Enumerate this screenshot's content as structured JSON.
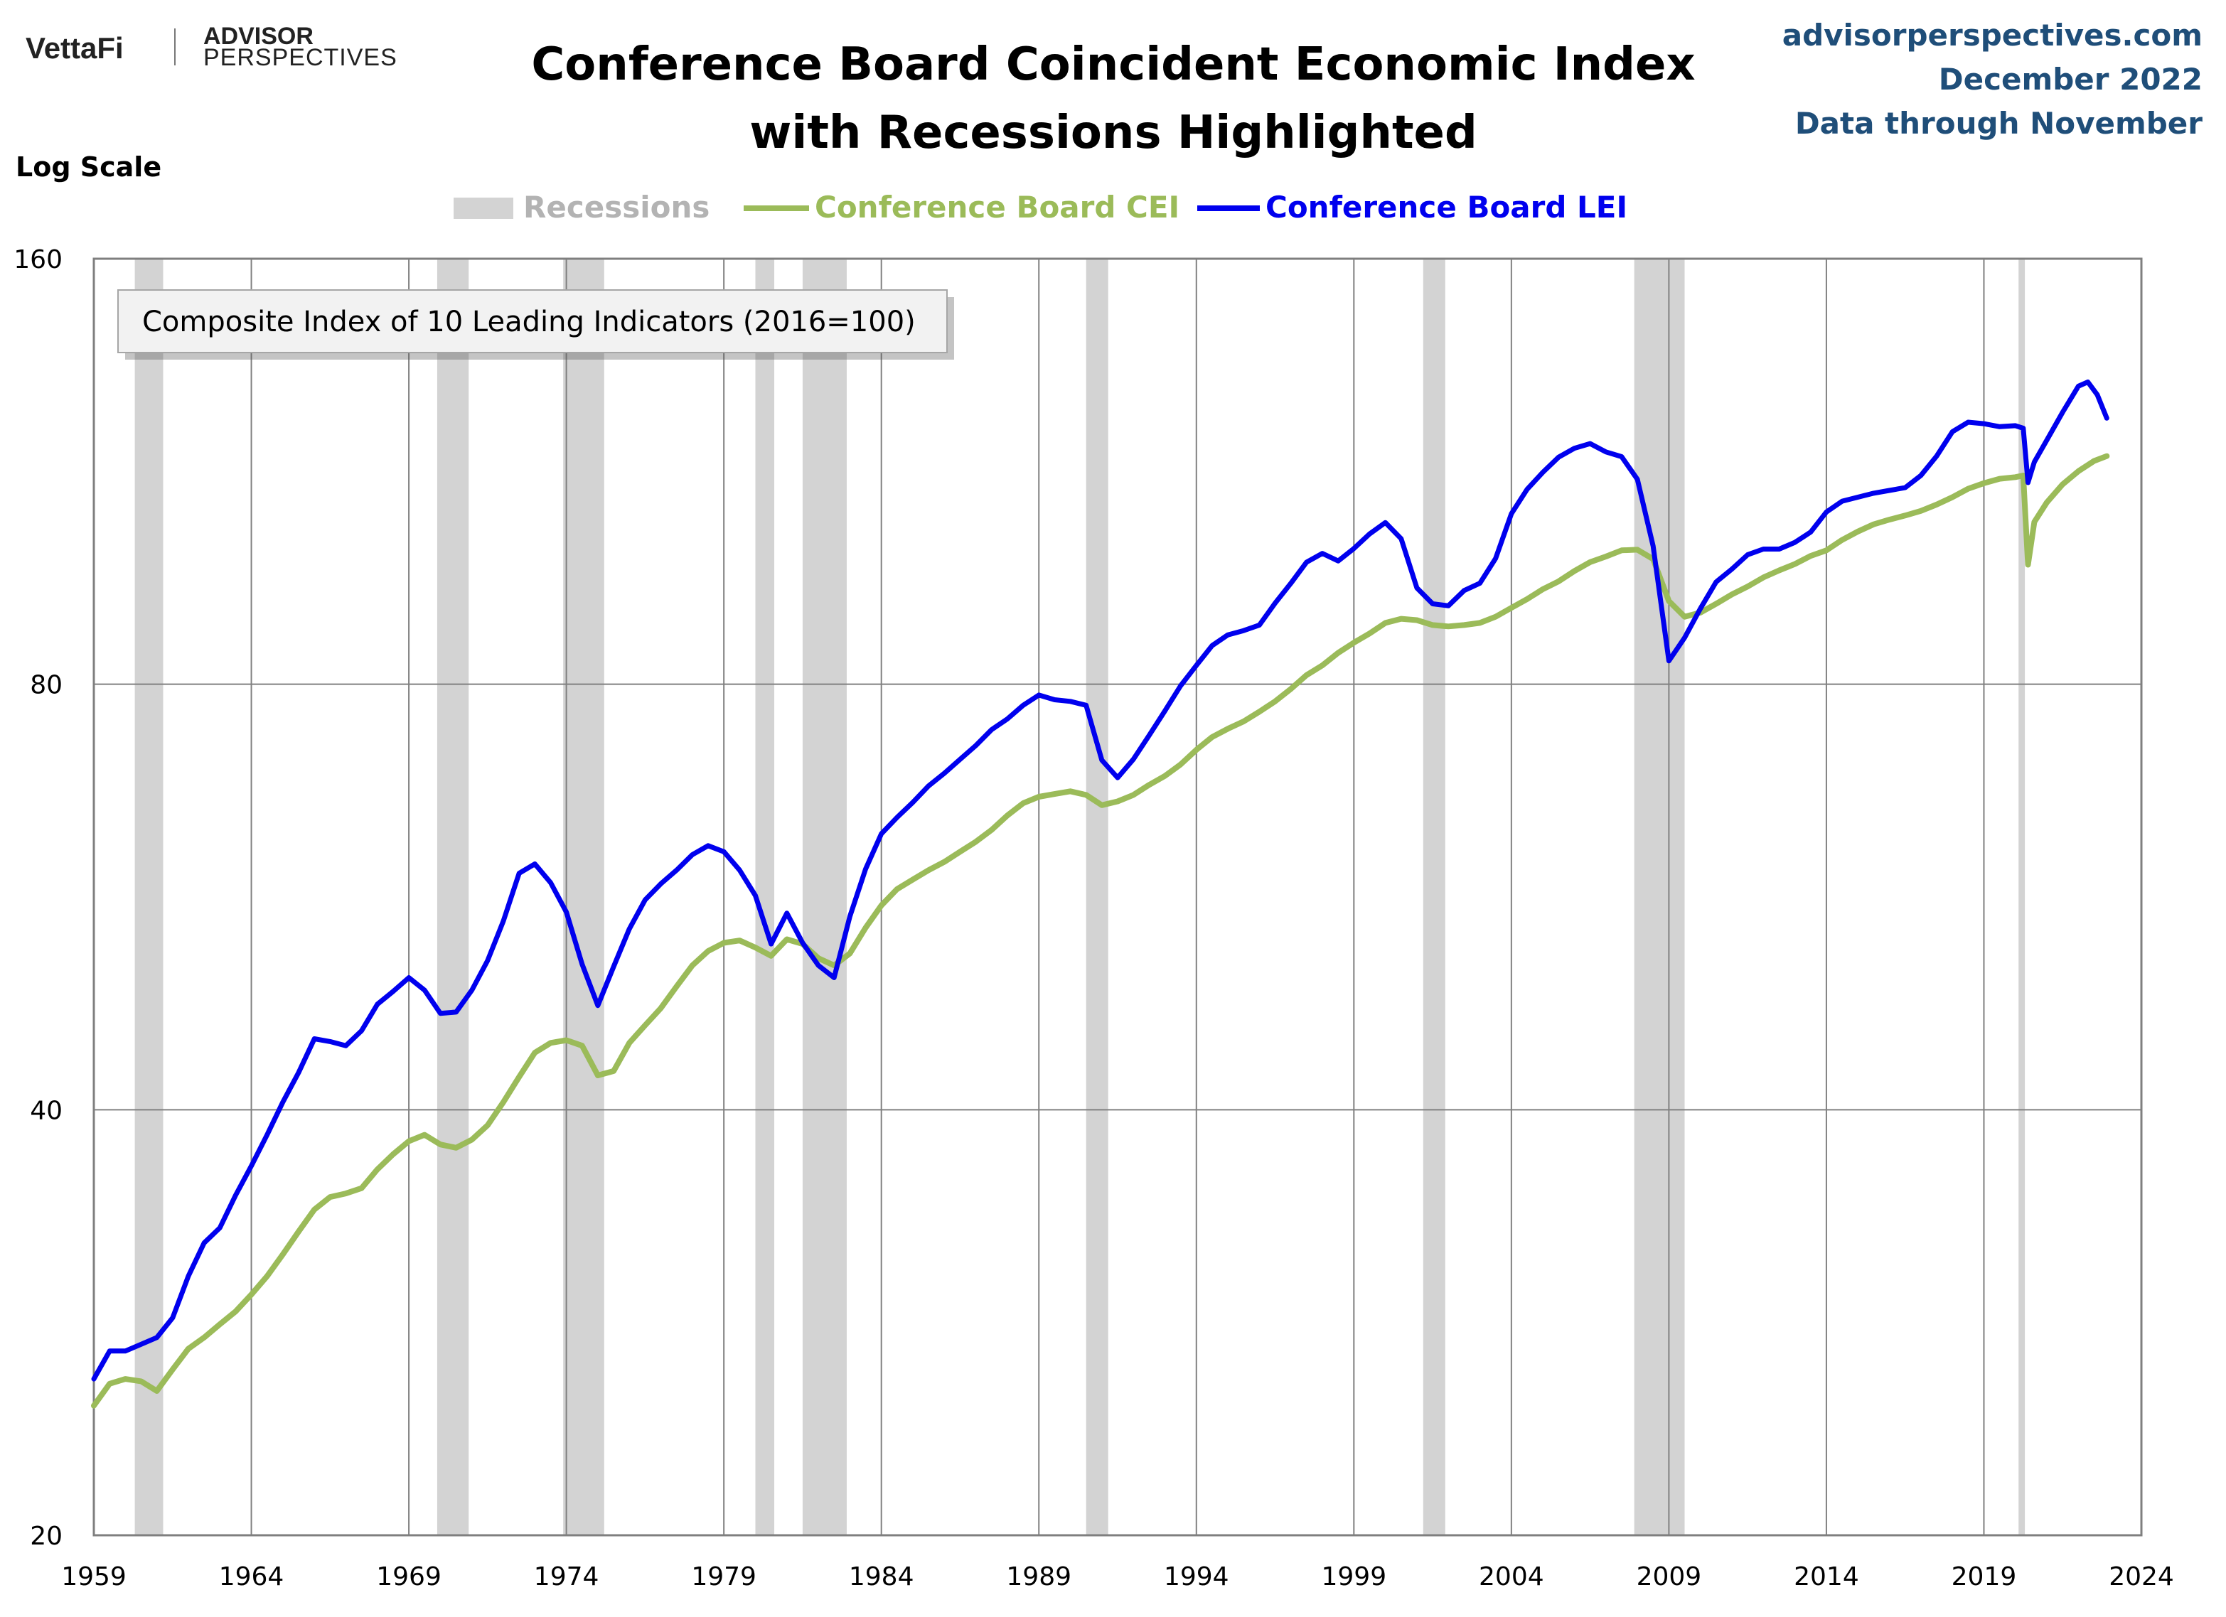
{
  "branding": {
    "logo_left": "VettaFi",
    "logo_right_line1": "ADVISOR",
    "logo_right_line2": "PERSPECTIVES",
    "site": "advisorperspectives.com",
    "date": "December 2022",
    "data_through": "Data through November"
  },
  "chart_data": {
    "type": "line",
    "title": "Conference Board Coincident Economic Index",
    "subtitle": "with Recessions Highlighted",
    "scale_label": "Log Scale",
    "y_scale": "log",
    "ylim": [
      20,
      160
    ],
    "y_ticks": [
      20,
      40,
      80,
      160
    ],
    "xlim": [
      1959,
      2024
    ],
    "x_ticks": [
      1959,
      1964,
      1969,
      1974,
      1979,
      1984,
      1989,
      1994,
      1999,
      2004,
      2009,
      2014,
      2019,
      2024
    ],
    "grid": true,
    "legend_position": "top-center",
    "annotation": "Composite Index of 10 Leading Indicators (2016=100)",
    "recessions": {
      "name": "Recessions",
      "color": "#d3d3d3",
      "periods": [
        [
          1960.3,
          1961.2
        ],
        [
          1969.9,
          1970.9
        ],
        [
          1973.9,
          1975.2
        ],
        [
          1980.0,
          1980.6
        ],
        [
          1981.5,
          1982.9
        ],
        [
          1990.5,
          1991.2
        ],
        [
          2001.2,
          2001.9
        ],
        [
          2007.9,
          2009.5
        ],
        [
          2020.1,
          2020.3
        ]
      ]
    },
    "series": [
      {
        "name": "Conference Board CEI",
        "color": "#9bbb59",
        "x": [
          1959.0,
          1959.5,
          1960.0,
          1960.5,
          1961.0,
          1961.5,
          1962.0,
          1962.5,
          1963.0,
          1963.5,
          1964.0,
          1964.5,
          1965.0,
          1965.5,
          1966.0,
          1966.5,
          1967.0,
          1967.5,
          1968.0,
          1968.5,
          1969.0,
          1969.5,
          1970.0,
          1970.5,
          1971.0,
          1971.5,
          1972.0,
          1972.5,
          1973.0,
          1973.5,
          1974.0,
          1974.5,
          1975.0,
          1975.5,
          1976.0,
          1976.5,
          1977.0,
          1977.5,
          1978.0,
          1978.5,
          1979.0,
          1979.5,
          1980.0,
          1980.5,
          1981.0,
          1981.5,
          1982.0,
          1982.5,
          1983.0,
          1983.5,
          1984.0,
          1984.5,
          1985.0,
          1985.5,
          1986.0,
          1986.5,
          1987.0,
          1987.5,
          1988.0,
          1988.5,
          1989.0,
          1989.5,
          1990.0,
          1990.5,
          1991.0,
          1991.5,
          1992.0,
          1992.5,
          1993.0,
          1993.5,
          1994.0,
          1994.5,
          1995.0,
          1995.5,
          1996.0,
          1996.5,
          1997.0,
          1997.5,
          1998.0,
          1998.5,
          1999.0,
          1999.5,
          2000.0,
          2000.5,
          2001.0,
          2001.5,
          2002.0,
          2002.5,
          2003.0,
          2003.5,
          2004.0,
          2004.5,
          2005.0,
          2005.5,
          2006.0,
          2006.5,
          2007.0,
          2007.5,
          2008.0,
          2008.5,
          2009.0,
          2009.5,
          2010.0,
          2010.5,
          2011.0,
          2011.5,
          2012.0,
          2012.5,
          2013.0,
          2013.5,
          2014.0,
          2014.5,
          2015.0,
          2015.5,
          2016.0,
          2016.5,
          2017.0,
          2017.5,
          2018.0,
          2018.5,
          2019.0,
          2019.5,
          2020.0,
          2020.25,
          2020.4,
          2020.6,
          2021.0,
          2021.5,
          2022.0,
          2022.5,
          2022.9
        ],
        "values": [
          24.7,
          25.6,
          25.8,
          25.7,
          25.3,
          26.2,
          27.1,
          27.6,
          28.2,
          28.8,
          29.6,
          30.5,
          31.6,
          32.8,
          34.0,
          34.7,
          34.9,
          35.2,
          36.3,
          37.2,
          38.0,
          38.4,
          37.8,
          37.6,
          38.1,
          39.0,
          40.5,
          42.2,
          43.9,
          44.6,
          44.8,
          44.4,
          42.3,
          42.6,
          44.6,
          45.9,
          47.2,
          48.9,
          50.6,
          51.8,
          52.5,
          52.7,
          52.1,
          51.4,
          52.8,
          52.4,
          51.2,
          50.6,
          51.6,
          53.8,
          55.8,
          57.3,
          58.2,
          59.1,
          59.9,
          60.9,
          61.9,
          63.1,
          64.6,
          65.9,
          66.6,
          66.9,
          67.2,
          66.8,
          65.7,
          66.1,
          66.8,
          67.9,
          68.9,
          70.2,
          71.9,
          73.4,
          74.4,
          75.3,
          76.5,
          77.8,
          79.4,
          81.2,
          82.5,
          84.2,
          85.6,
          86.9,
          88.4,
          89.0,
          88.8,
          88.1,
          87.9,
          88.1,
          88.4,
          89.3,
          90.6,
          91.9,
          93.4,
          94.6,
          96.2,
          97.6,
          98.5,
          99.5,
          99.6,
          98.1,
          91.6,
          89.3,
          89.9,
          91.2,
          92.6,
          93.8,
          95.2,
          96.3,
          97.3,
          98.6,
          99.5,
          101.2,
          102.6,
          103.8,
          104.6,
          105.3,
          106.1,
          107.2,
          108.5,
          110.0,
          111.0,
          111.8,
          112.1,
          112.4,
          97.2,
          104.2,
          107.6,
          110.8,
          113.2,
          115.1,
          116.0
        ]
      },
      {
        "name": "Conference Board LEI",
        "color": "#0000ee",
        "x": [
          1959.0,
          1959.5,
          1960.0,
          1960.5,
          1961.0,
          1961.5,
          1962.0,
          1962.5,
          1963.0,
          1963.5,
          1964.0,
          1964.5,
          1965.0,
          1965.5,
          1966.0,
          1966.5,
          1967.0,
          1967.5,
          1968.0,
          1968.5,
          1969.0,
          1969.5,
          1970.0,
          1970.5,
          1971.0,
          1971.5,
          1972.0,
          1972.5,
          1973.0,
          1973.5,
          1974.0,
          1974.5,
          1975.0,
          1975.5,
          1976.0,
          1976.5,
          1977.0,
          1977.5,
          1978.0,
          1978.5,
          1979.0,
          1979.5,
          1980.0,
          1980.5,
          1981.0,
          1981.5,
          1982.0,
          1982.5,
          1983.0,
          1983.5,
          1984.0,
          1984.5,
          1985.0,
          1985.5,
          1986.0,
          1986.5,
          1987.0,
          1987.5,
          1988.0,
          1988.5,
          1989.0,
          1989.5,
          1990.0,
          1990.5,
          1991.0,
          1991.5,
          1992.0,
          1992.5,
          1993.0,
          1993.5,
          1994.0,
          1994.5,
          1995.0,
          1995.5,
          1996.0,
          1996.5,
          1997.0,
          1997.5,
          1998.0,
          1998.5,
          1999.0,
          1999.5,
          2000.0,
          2000.5,
          2001.0,
          2001.5,
          2002.0,
          2002.5,
          2003.0,
          2003.5,
          2004.0,
          2004.5,
          2005.0,
          2005.5,
          2006.0,
          2006.5,
          2007.0,
          2007.5,
          2008.0,
          2008.5,
          2009.0,
          2009.5,
          2010.0,
          2010.5,
          2011.0,
          2011.5,
          2012.0,
          2012.5,
          2013.0,
          2013.5,
          2014.0,
          2014.5,
          2015.0,
          2015.5,
          2016.0,
          2016.5,
          2017.0,
          2017.5,
          2018.0,
          2018.5,
          2019.0,
          2019.5,
          2020.0,
          2020.25,
          2020.4,
          2020.6,
          2021.0,
          2021.5,
          2022.0,
          2022.3,
          2022.6,
          2022.9
        ],
        "values": [
          25.8,
          27.0,
          27.0,
          27.3,
          27.6,
          28.5,
          30.5,
          32.2,
          33.0,
          34.8,
          36.5,
          38.4,
          40.5,
          42.5,
          44.9,
          44.7,
          44.4,
          45.5,
          47.5,
          48.5,
          49.6,
          48.6,
          46.8,
          46.9,
          48.6,
          51.0,
          54.4,
          58.8,
          59.7,
          57.9,
          55.2,
          50.7,
          47.4,
          50.5,
          53.7,
          56.3,
          57.8,
          59.1,
          60.6,
          61.5,
          60.9,
          59.1,
          56.7,
          52.4,
          55.1,
          52.5,
          50.6,
          49.6,
          54.8,
          59.2,
          62.7,
          64.4,
          66.0,
          67.8,
          69.2,
          70.8,
          72.4,
          74.3,
          75.6,
          77.3,
          78.6,
          78.0,
          77.8,
          77.3,
          70.7,
          68.7,
          70.8,
          73.6,
          76.6,
          79.8,
          82.5,
          85.2,
          86.7,
          87.3,
          88.1,
          91.3,
          94.3,
          97.6,
          99.0,
          97.8,
          99.8,
          102.2,
          104.1,
          101.4,
          93.6,
          91.2,
          90.9,
          93.2,
          94.3,
          98.2,
          105.6,
          109.9,
          113.0,
          115.8,
          117.5,
          118.4,
          116.8,
          115.9,
          111.7,
          100.2,
          83.1,
          86.3,
          90.5,
          94.5,
          96.5,
          98.8,
          99.7,
          99.7,
          100.8,
          102.5,
          105.9,
          107.8,
          108.5,
          109.2,
          109.7,
          110.2,
          112.4,
          116.0,
          120.7,
          122.6,
          122.3,
          121.7,
          121.9,
          121.4,
          111.1,
          114.9,
          119.1,
          124.6,
          130.0,
          130.9,
          128.2,
          123.4
        ]
      }
    ]
  }
}
